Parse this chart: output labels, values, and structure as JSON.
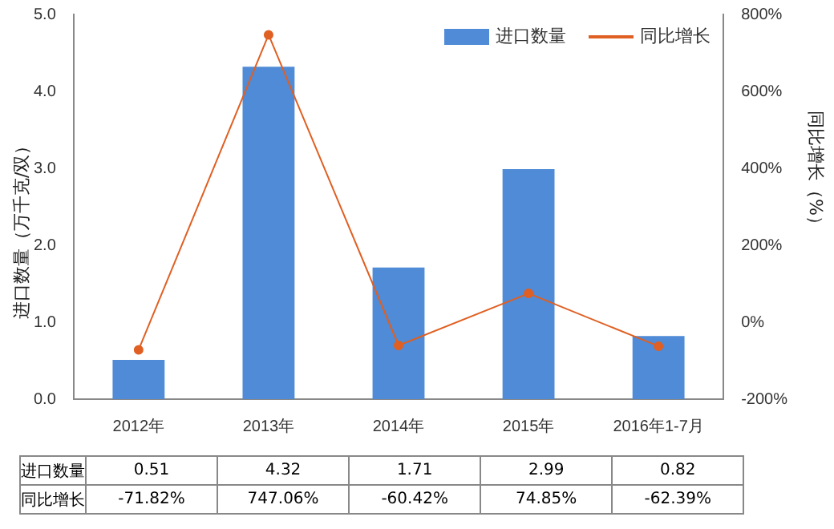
{
  "chart_data": {
    "type": "bar",
    "categories": [
      "2012年",
      "2013年",
      "2014年",
      "2015年",
      "2016年1-7月"
    ],
    "ylabel": "进口数量（万千克/双）",
    "y2label": "同比增长（%）",
    "series": [
      {
        "name": "进口数量",
        "color": "#4f8bd6",
        "values": [
          0.51,
          4.32,
          1.71,
          2.99,
          0.82
        ],
        "value_labels": [
          "0.51",
          "4.32",
          "1.71",
          "2.99",
          "0.82"
        ]
      },
      {
        "name": "同比增长",
        "type": "line",
        "axis": "y2",
        "color": "#e05f22",
        "values": [
          -71.82,
          747.06,
          -60.42,
          74.85,
          -62.39
        ],
        "value_labels": [
          "-71.82%",
          "747.06%",
          "-60.42%",
          "74.85%",
          "-62.39%"
        ]
      }
    ],
    "ylim": [
      0,
      5
    ],
    "yticks": [
      {
        "value": 0,
        "label": "0.0"
      },
      {
        "value": 1,
        "label": "1.0"
      },
      {
        "value": 2,
        "label": "2.0"
      },
      {
        "value": 3,
        "label": "3.0"
      },
      {
        "value": 4,
        "label": "4.0"
      },
      {
        "value": 5,
        "label": "5.0"
      }
    ],
    "y2lim": [
      -200,
      800
    ],
    "y2ticks": [
      {
        "value": -200,
        "label": "-200%"
      },
      {
        "value": 0,
        "label": "0%"
      },
      {
        "value": 200,
        "label": "200%"
      },
      {
        "value": 400,
        "label": "400%"
      },
      {
        "value": 600,
        "label": "600%"
      },
      {
        "value": 800,
        "label": "800%"
      }
    ],
    "legend": "top right",
    "marker": "circle",
    "grid": false
  }
}
